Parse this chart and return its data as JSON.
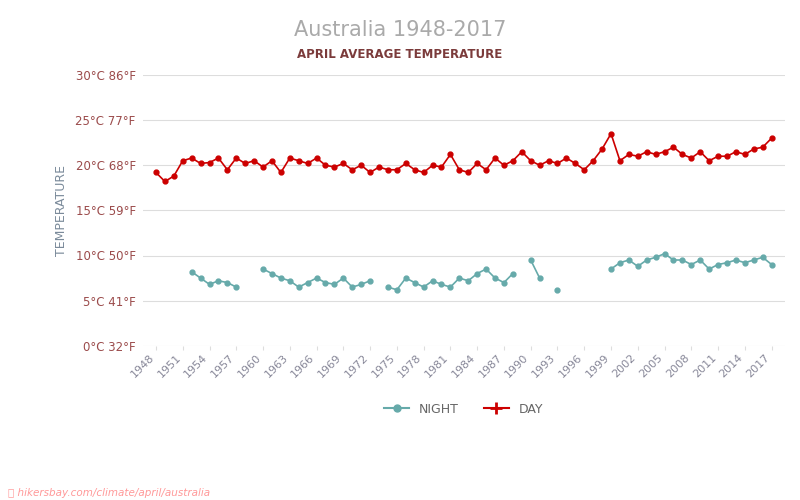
{
  "title": "Australia 1948-2017",
  "subtitle": "APRIL AVERAGE TEMPERATURE",
  "xlabel": "",
  "ylabel": "TEMPERATURE",
  "watermark": "hikersbay.com/climate/april/australia",
  "title_color": "#aaaaaa",
  "subtitle_color": "#7b3b3b",
  "ylabel_color": "#7a8a9a",
  "tick_color": "#9b4b4b",
  "grid_color": "#dddddd",
  "background_color": "#ffffff",
  "day_color": "#cc0000",
  "night_color": "#66aaaa",
  "ylim": [
    0,
    30
  ],
  "yticks_c": [
    0,
    5,
    10,
    15,
    20,
    25,
    30
  ],
  "yticks_f": [
    32,
    41,
    50,
    59,
    68,
    77,
    86
  ],
  "years": [
    1948,
    1949,
    1950,
    1951,
    1952,
    1953,
    1954,
    1955,
    1956,
    1957,
    1958,
    1959,
    1960,
    1961,
    1962,
    1963,
    1964,
    1965,
    1966,
    1967,
    1968,
    1969,
    1970,
    1971,
    1972,
    1973,
    1974,
    1975,
    1976,
    1977,
    1978,
    1979,
    1980,
    1981,
    1982,
    1983,
    1984,
    1985,
    1986,
    1987,
    1988,
    1989,
    1990,
    1991,
    1992,
    1993,
    1994,
    1995,
    1996,
    1997,
    1998,
    1999,
    2000,
    2001,
    2002,
    2003,
    2004,
    2005,
    2006,
    2007,
    2008,
    2009,
    2010,
    2011,
    2012,
    2013,
    2014,
    2015,
    2016,
    2017
  ],
  "day_temps": [
    19.2,
    18.2,
    18.8,
    20.5,
    20.8,
    20.2,
    20.3,
    20.8,
    19.5,
    20.8,
    20.2,
    20.5,
    19.8,
    20.5,
    19.2,
    20.8,
    20.5,
    20.2,
    20.8,
    20.0,
    19.8,
    20.2,
    19.5,
    20.0,
    19.2,
    19.8,
    19.5,
    19.5,
    20.2,
    19.5,
    19.2,
    20.0,
    19.8,
    21.2,
    19.5,
    19.2,
    20.2,
    19.5,
    20.8,
    20.0,
    20.5,
    21.5,
    20.5,
    20.0,
    20.5,
    20.2,
    20.8,
    20.2,
    19.5,
    20.5,
    21.8,
    23.5,
    20.5,
    21.2,
    21.0,
    21.5,
    21.2,
    21.5,
    22.0,
    21.2,
    20.8,
    21.5,
    20.5,
    21.0,
    21.0,
    21.5,
    21.2,
    21.8,
    22.0,
    23.0
  ],
  "night_temps": [
    null,
    null,
    null,
    null,
    8.2,
    7.5,
    6.8,
    7.2,
    7.0,
    6.5,
    null,
    null,
    8.5,
    8.0,
    7.5,
    7.2,
    6.5,
    7.0,
    7.5,
    7.0,
    6.8,
    7.5,
    6.5,
    6.8,
    7.2,
    null,
    6.5,
    6.2,
    7.5,
    7.0,
    6.5,
    7.2,
    6.8,
    6.5,
    7.5,
    7.2,
    8.0,
    8.5,
    7.5,
    7.0,
    8.0,
    null,
    9.5,
    7.5,
    null,
    6.2,
    null,
    null,
    null,
    null,
    null,
    8.5,
    9.2,
    9.5,
    8.8,
    9.5,
    9.8,
    10.2,
    9.5,
    9.5,
    9.0,
    9.5,
    8.5,
    9.0,
    9.2,
    9.5,
    9.2,
    9.5,
    9.8,
    9.0
  ],
  "xtick_years": [
    1948,
    1951,
    1954,
    1957,
    1960,
    1963,
    1966,
    1969,
    1972,
    1975,
    1978,
    1981,
    1984,
    1987,
    1990,
    1993,
    1996,
    1999,
    2002,
    2005,
    2008,
    2011,
    2014,
    2017
  ]
}
